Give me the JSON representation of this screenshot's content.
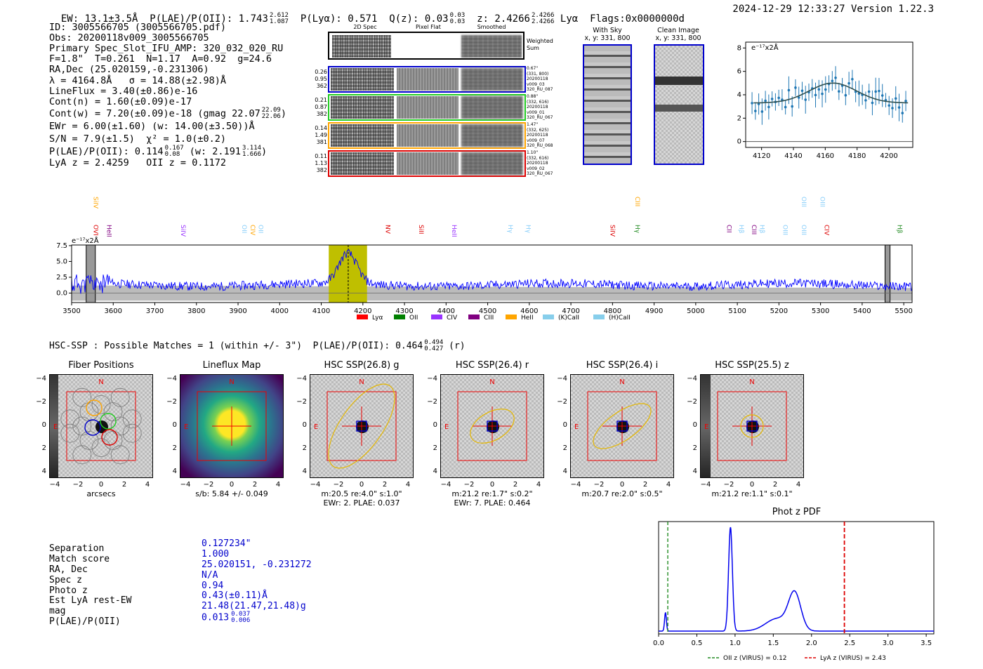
{
  "header": {
    "ew": "EW: 13.1±3.5Å",
    "plae_label": "P(LAE)/P(OII): 1.743",
    "plae_sup": "2.612",
    "plae_sub": "1.087",
    "plya": "P(Lyα): 0.571",
    "qz_label": "Q(z): 0.03",
    "qz_sup": "0.03",
    "qz_sub": "0.03",
    "z_label": "z: 2.4266",
    "z_sup": "2.4266",
    "z_sub": "2.4266",
    "z_line": "Lyα",
    "flags": "Flags:0x0000000d",
    "timestamp": "2024-12-29 12:33:27  Version 1.22.3"
  },
  "info": {
    "id": "ID: 3005566705 (3005566705.pdf)",
    "obs": "Obs: 20200118v009_3005566705",
    "primary": "Primary Spec_Slot_IFU_AMP: 320_032_020_RU",
    "fline": "F=1.8\"  T=0.261  N=1.17  A=0.92  g=24.6",
    "radec": "RA,Dec (25.020159,-0.231306)",
    "lambda": "λ = 4164.8Å   σ = 14.88(±2.98)Å",
    "lineflux": "LineFlux = 3.40(±0.86)e-16",
    "contn": "Cont(n) = 1.60(±0.09)e-17",
    "contw": "Cont(w) = 7.20(±0.09)e-18 (gmag 22.07",
    "contw_sup": "22.09",
    "contw_sub": "22.06",
    "ewr": "EWr = 6.00(±1.60) (w: 14.00(±3.50))Å",
    "sn": "S/N = 7.9(±1.5)  χ² = 1.0(±0.2)",
    "plae": "P(LAE)/P(OII): 0.114",
    "plae_sup": "0.167",
    "plae_sub": "0.08",
    "plae_w": "(w: 2.191",
    "plae_w_sup": "3.114",
    "plae_w_sub": "1.666",
    "lyaz": "LyA z = 2.4259   OII z = 0.1172"
  },
  "stamps": {
    "col_headers": [
      "2D Spec",
      "Pixel Flat",
      "Smoothed"
    ],
    "weighted_sum": "Weighted Sum",
    "rows": [
      {
        "left": [
          "0.26",
          "0.95",
          "362"
        ],
        "right": [
          "0.67\"",
          "(331, 800)",
          "20200118",
          "v009_03",
          "320_RU_087"
        ],
        "color": "#0000cc"
      },
      {
        "left": [
          "0.21",
          "0.87",
          "382"
        ],
        "right": [
          "0.88\"",
          "(332, 616)",
          "20200118",
          "v009_01",
          "320_RU_067"
        ],
        "color": "#22cc22"
      },
      {
        "left": [
          "0.14",
          "1.49",
          "381"
        ],
        "right": [
          "1.47\"",
          "(332, 625)",
          "20200118",
          "v009_07",
          "320_RU_068"
        ],
        "color": "#ffa500"
      },
      {
        "left": [
          "0.11",
          "1.13",
          "382"
        ],
        "right": [
          "1.10\"",
          "(332, 616)",
          "20200118",
          "v009_02",
          "320_RU_067"
        ],
        "color": "#dd0000"
      }
    ],
    "with_sky": "With Sky",
    "with_sky_xy": "x, y: 331, 800",
    "clean": "Clean Image",
    "clean_xy": "x, y: 331, 800"
  },
  "fit_plot": {
    "ylabel": "e⁻¹⁷x2Å",
    "xticks": [
      "4120",
      "4140",
      "4160",
      "4180",
      "4200"
    ],
    "yticks": [
      "0",
      "2",
      "4",
      "6",
      "8"
    ]
  },
  "spectrum": {
    "ylabel": "e⁻¹⁷x2Å",
    "yticks": [
      "7.5",
      "5.0",
      "2.5",
      "0.0"
    ],
    "xticks": [
      "3500",
      "3600",
      "3700",
      "3800",
      "3900",
      "4000",
      "4100",
      "4200",
      "4300",
      "4400",
      "4500",
      "4600",
      "4700",
      "4800",
      "4900",
      "5000",
      "5100",
      "5200",
      "5300",
      "5400",
      "5500"
    ],
    "lines": [
      {
        "name": "SiIV",
        "color": "#ffa500",
        "x": 3548,
        "row": "top"
      },
      {
        "name": "OVI",
        "color": "#dd0000",
        "x": 3548,
        "row": "mid"
      },
      {
        "name": "HeII",
        "color": "#800080",
        "x": 3580,
        "row": "mid"
      },
      {
        "name": "SiIV",
        "color": "#9933ff",
        "x": 3758,
        "row": "mid"
      },
      {
        "name": "OII",
        "color": "#87cefa",
        "x": 3905,
        "row": "mid"
      },
      {
        "name": "CIV",
        "color": "#ffa500",
        "x": 3925,
        "row": "mid"
      },
      {
        "name": "OII",
        "color": "#87cefa",
        "x": 3945,
        "row": "mid"
      },
      {
        "name": "NV",
        "color": "#dd0000",
        "x": 4250,
        "row": "mid"
      },
      {
        "name": "SiII",
        "color": "#dd0000",
        "x": 4330,
        "row": "mid"
      },
      {
        "name": "HeII",
        "color": "#9933ff",
        "x": 4410,
        "row": "mid"
      },
      {
        "name": "Hγ",
        "color": "#87cefa",
        "x": 4545,
        "row": "mid"
      },
      {
        "name": "Hγ",
        "color": "#87cefa",
        "x": 4588,
        "row": "mid"
      },
      {
        "name": "SiIV",
        "color": "#dd0000",
        "x": 4790,
        "row": "mid"
      },
      {
        "name": "CIII",
        "color": "#ffa500",
        "x": 4850,
        "row": "top"
      },
      {
        "name": "Hγ",
        "color": "#228b22",
        "x": 4850,
        "row": "mid"
      },
      {
        "name": "CII",
        "color": "#800080",
        "x": 5070,
        "row": "mid"
      },
      {
        "name": "Hβ",
        "color": "#87cefa",
        "x": 5100,
        "row": "mid"
      },
      {
        "name": "CIII",
        "color": "#800080",
        "x": 5130,
        "row": "mid"
      },
      {
        "name": "Hβ",
        "color": "#87cefa",
        "x": 5150,
        "row": "mid"
      },
      {
        "name": "OIII",
        "color": "#87cefa",
        "x": 5205,
        "row": "mid"
      },
      {
        "name": "OIII",
        "color": "#87cefa",
        "x": 5250,
        "row": "top"
      },
      {
        "name": "OIII",
        "color": "#87cefa",
        "x": 5250,
        "row": "mid"
      },
      {
        "name": "OIII",
        "color": "#87cefa",
        "x": 5295,
        "row": "top"
      },
      {
        "name": "CIV",
        "color": "#dd0000",
        "x": 5305,
        "row": "mid"
      },
      {
        "name": "Hβ",
        "color": "#228b22",
        "x": 5480,
        "row": "mid"
      }
    ],
    "legend": [
      {
        "label": "Lyα",
        "color": "#ff0000"
      },
      {
        "label": "OII",
        "color": "#008000"
      },
      {
        "label": "CIV",
        "color": "#9933ff"
      },
      {
        "label": "CIII",
        "color": "#800080"
      },
      {
        "label": "HeII",
        "color": "#ffa500"
      },
      {
        "label": "(K)CaII",
        "color": "#87ceeb"
      },
      {
        "label": "(H)CaII",
        "color": "#87ceeb"
      }
    ]
  },
  "hsc": {
    "header": "HSC-SSP : Possible Matches = 1 (within +/- 3\")  P(LAE)/P(OII): 0.464",
    "header_sup": "0.494",
    "header_sub": "0.427",
    "header_band": "(r)",
    "panel_titles": [
      "Fiber Positions",
      "Lineflux Map",
      "HSC SSP(26.8) g",
      "HSC SSP(26.4) r",
      "HSC SSP(26.4) i",
      "HSC SSP(25.5) z"
    ],
    "xticks": [
      "−4",
      "−2",
      "0",
      "2",
      "4"
    ],
    "yticks": [
      "4",
      "2",
      "0",
      "−2",
      "−4"
    ],
    "north": "N",
    "east": "E",
    "captions": [
      [
        "arcsecs"
      ],
      [
        "s/b: 5.84 +/- 0.049"
      ],
      [
        "m:20.5   re:4.0\"   s:1.0\"",
        "EWr: 2. PLAE: 0.037"
      ],
      [
        "m:21.2   re:1.7\"   s:0.2\"",
        "EWr: 7. PLAE: 0.464"
      ],
      [
        "m:20.7   re:2.0\"   s:0.5\""
      ],
      [
        "m:21.2   re:1.1\"   s:0.1\""
      ]
    ]
  },
  "match": {
    "labels": [
      "Separation",
      "Match score",
      "RA, Dec",
      "Spec z",
      "Photo z",
      "Est LyA rest-EW",
      "mag",
      "P(LAE)/P(OII)"
    ],
    "values": [
      "0.127234\"",
      "1.000",
      "25.020151, -0.231272",
      "N/A",
      "0.94",
      "0.43(±0.11)Å",
      "21.48(21.47,21.48)g",
      "0.013"
    ],
    "plae_sup": "0.037",
    "plae_sub": "0.006"
  },
  "photz": {
    "title": "Phot z PDF",
    "xticks": [
      "0.0",
      "0.5",
      "1.0",
      "1.5",
      "2.0",
      "2.5",
      "3.0",
      "3.5"
    ],
    "legend_oii": "OII z (VIRUS) = 0.12",
    "legend_lya": "LyA z (VIRUS) = 2.43",
    "oii_z": 0.12,
    "lya_z": 2.43
  },
  "colors": {
    "accent_blue": "#0000cc",
    "highlight": "#bfbf00"
  }
}
